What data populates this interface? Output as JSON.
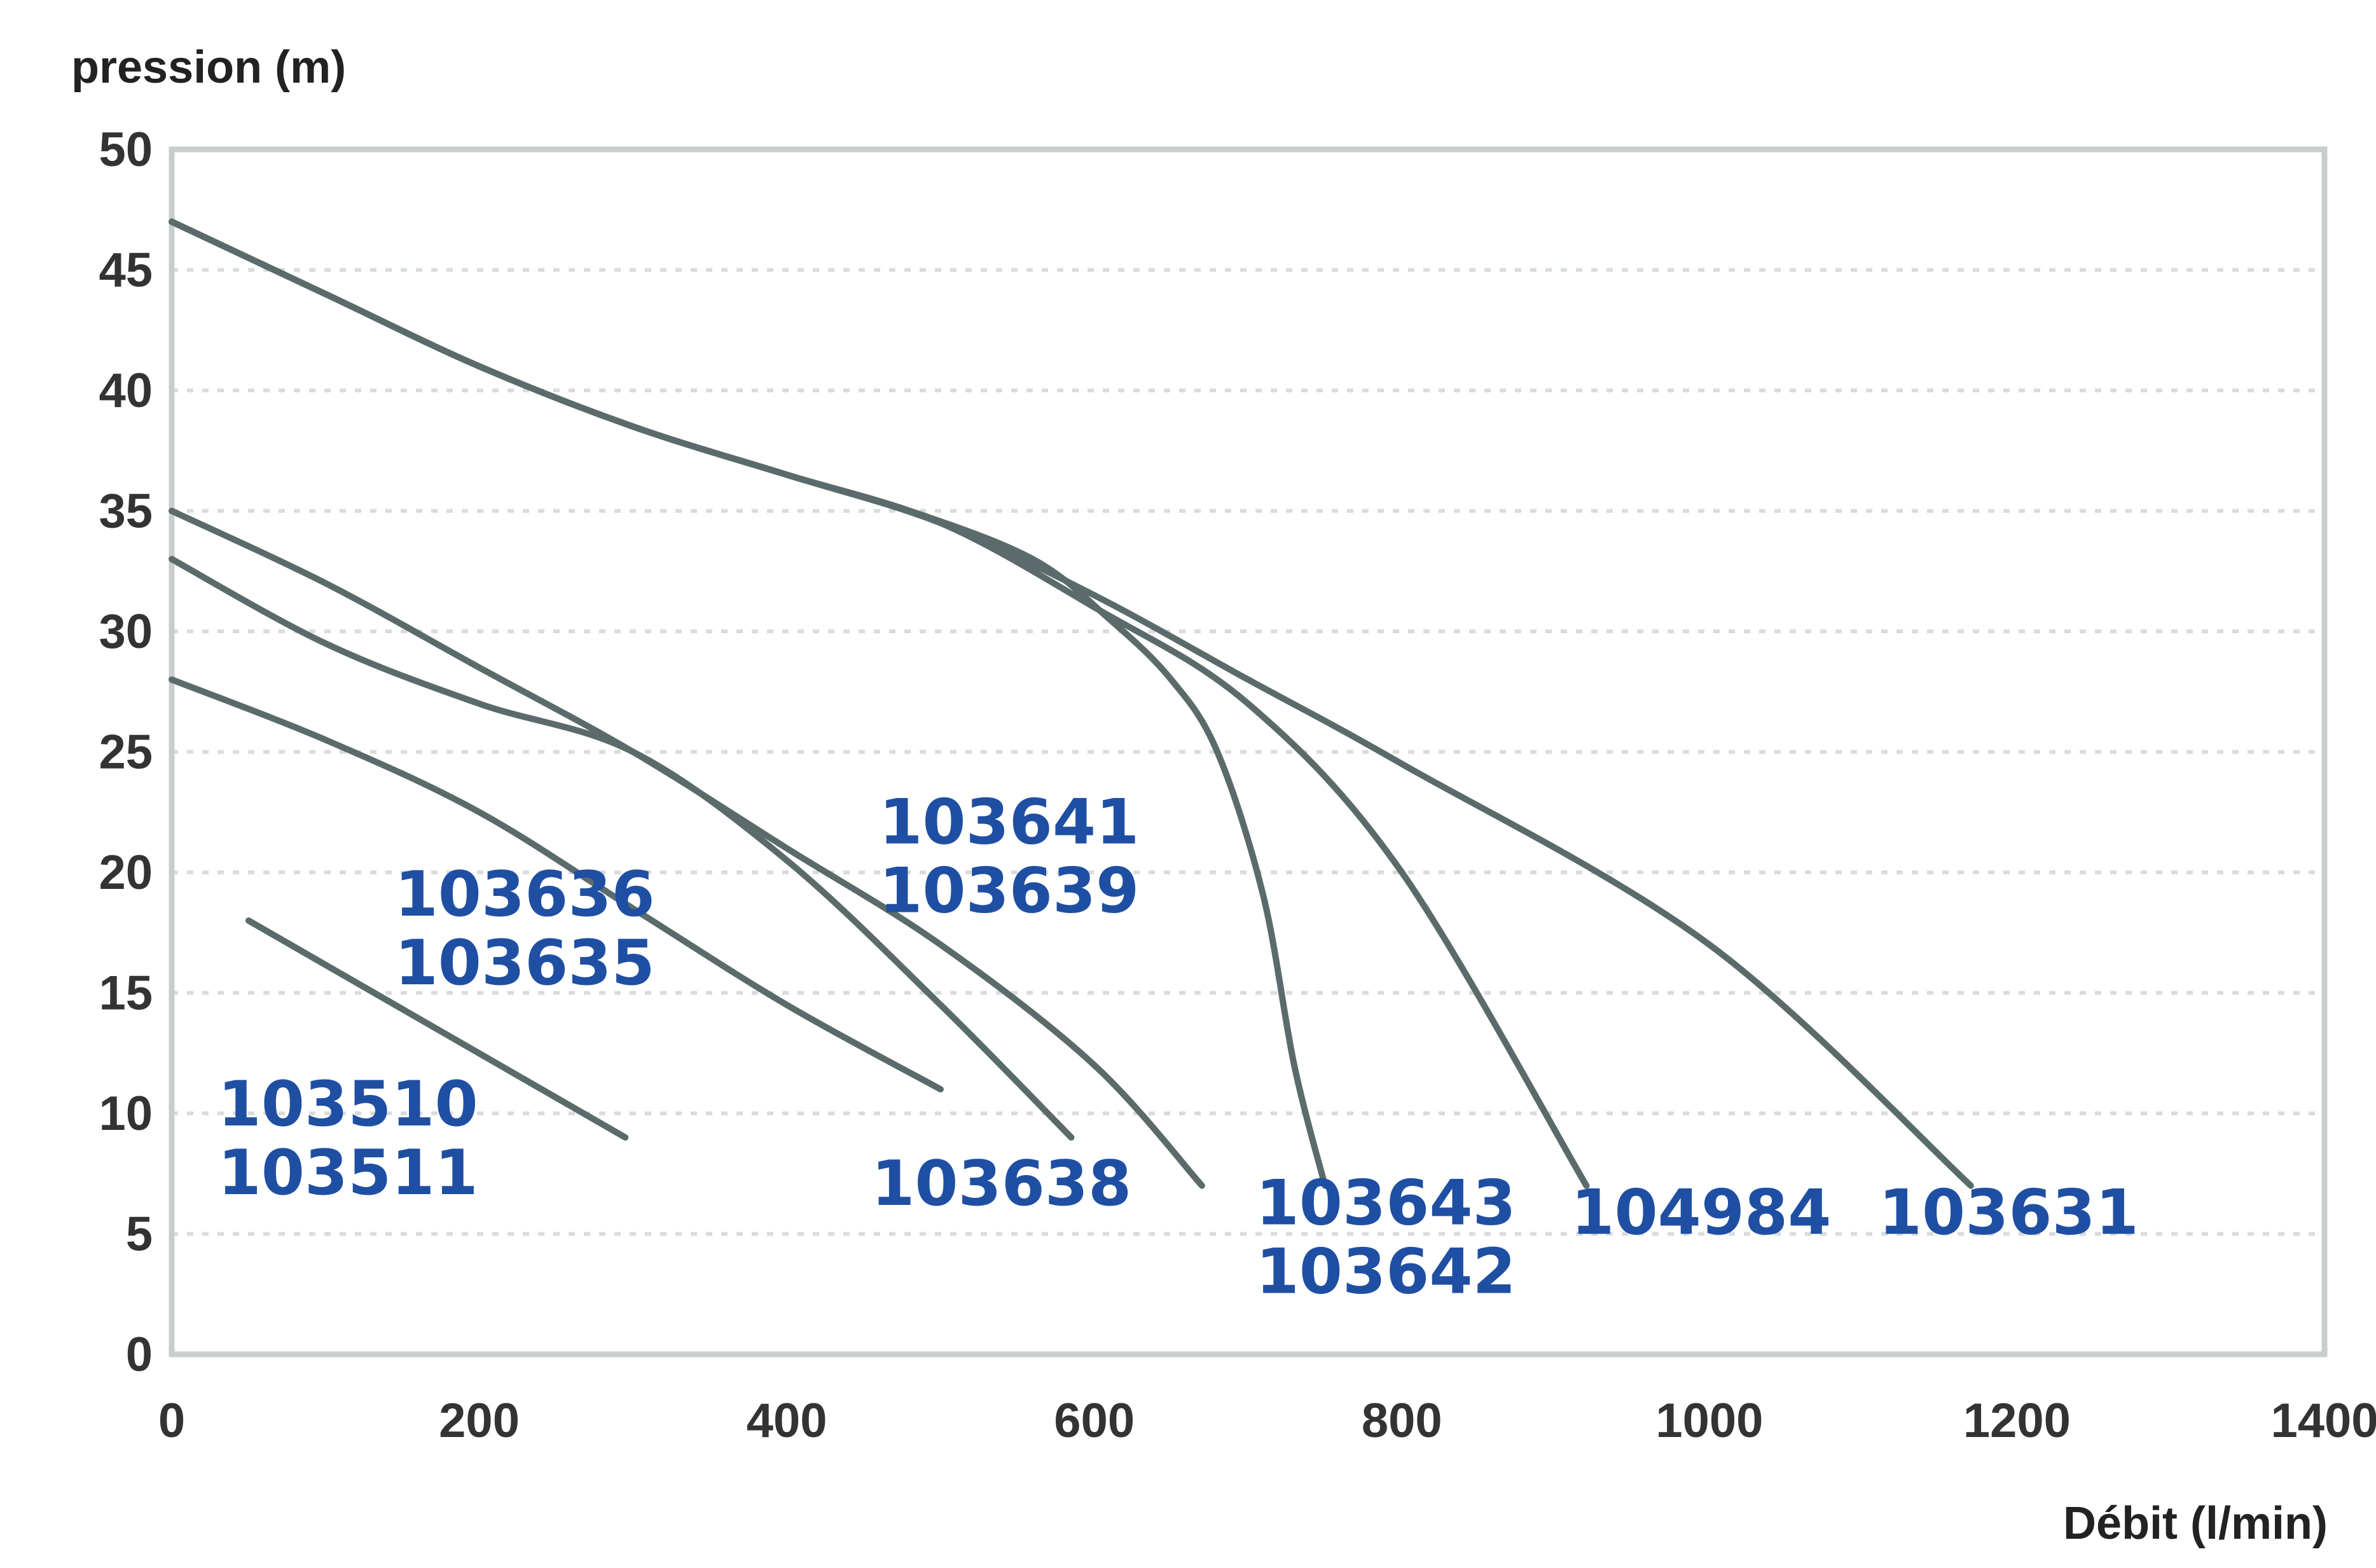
{
  "colors": {
    "curve": "#5b6b6b",
    "frame": "#c9cdcd",
    "grid": "#d9dcdc",
    "label": "#1f4fa3"
  },
  "chart_data": {
    "type": "line",
    "ylabel": "pression (m)",
    "xlabel": "Débit (l/min)",
    "xlim": [
      0,
      1400
    ],
    "ylim": [
      0,
      50
    ],
    "xticks": [
      0,
      200,
      400,
      600,
      800,
      1000,
      1200,
      1400
    ],
    "yticks": [
      0,
      5,
      10,
      15,
      20,
      25,
      30,
      35,
      40,
      45,
      50
    ],
    "x_tick_labels": [
      "0",
      "200",
      "400",
      "600",
      "800",
      "1000",
      "1200",
      "1400"
    ],
    "y_tick_labels": [
      "0",
      "5",
      "10",
      "15",
      "20",
      "25",
      "30",
      "35",
      "40",
      "45",
      "50"
    ],
    "grid": "horizontal dotted",
    "series": [
      {
        "points": [
          [
            50,
            18
          ],
          [
            295,
            9
          ]
        ]
      },
      {
        "points": [
          [
            0,
            28
          ],
          [
            100,
            25.5
          ],
          [
            200,
            22.5
          ],
          [
            300,
            18.5
          ],
          [
            400,
            14.5
          ],
          [
            500,
            11
          ]
        ]
      },
      {
        "points": [
          [
            0,
            33
          ],
          [
            100,
            29.5
          ],
          [
            200,
            27
          ],
          [
            300,
            25
          ],
          [
            400,
            20.5
          ],
          [
            500,
            14.5
          ],
          [
            585,
            9
          ]
        ]
      },
      {
        "points": [
          [
            0,
            35
          ],
          [
            100,
            32
          ],
          [
            200,
            28.5
          ],
          [
            300,
            25
          ],
          [
            400,
            21
          ],
          [
            500,
            17
          ],
          [
            600,
            12
          ],
          [
            670,
            7
          ]
        ]
      },
      {
        "points": [
          [
            0,
            47
          ],
          [
            100,
            44
          ],
          [
            200,
            41
          ],
          [
            300,
            38.5
          ],
          [
            400,
            36.5
          ],
          [
            480,
            35
          ],
          [
            560,
            33
          ],
          [
            610,
            30.5
          ],
          [
            650,
            28
          ],
          [
            680,
            25
          ],
          [
            710,
            19
          ],
          [
            730,
            12
          ],
          [
            750,
            7
          ]
        ]
      },
      {
        "points": [
          [
            0,
            47
          ],
          [
            100,
            44
          ],
          [
            200,
            41
          ],
          [
            300,
            38.5
          ],
          [
            400,
            36.5
          ],
          [
            500,
            34.5
          ],
          [
            600,
            31
          ],
          [
            700,
            27
          ],
          [
            800,
            20
          ],
          [
            920,
            7
          ]
        ]
      },
      {
        "points": [
          [
            0,
            47
          ],
          [
            100,
            44
          ],
          [
            200,
            41
          ],
          [
            300,
            38.5
          ],
          [
            400,
            36.5
          ],
          [
            500,
            34.5
          ],
          [
            600,
            31.5
          ],
          [
            700,
            28
          ],
          [
            800,
            24.5
          ],
          [
            1000,
            17
          ],
          [
            1170,
            7
          ]
        ]
      }
    ],
    "annotations": [
      {
        "lines": [
          "103510",
          "103511"
        ],
        "x": 30,
        "y": 9.5
      },
      {
        "lines": [
          "103636",
          "103635"
        ],
        "x": 145,
        "y": 18.2
      },
      {
        "lines": [
          "103641",
          "103639"
        ],
        "x": 460,
        "y": 21.2
      },
      {
        "lines": [
          "103638"
        ],
        "x": 455,
        "y": 6.2
      },
      {
        "lines": [
          "103643",
          "103642"
        ],
        "x": 705,
        "y": 5.4
      },
      {
        "lines": [
          "104984"
        ],
        "x": 910,
        "y": 5
      },
      {
        "lines": [
          "103631"
        ],
        "x": 1110,
        "y": 5
      }
    ]
  }
}
